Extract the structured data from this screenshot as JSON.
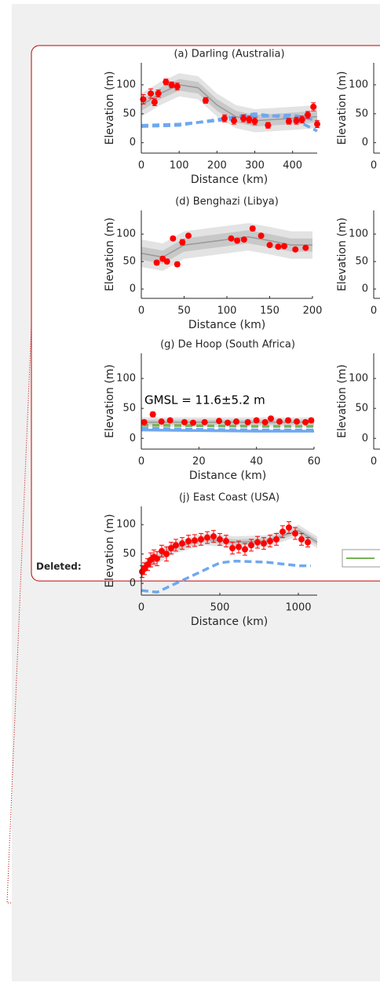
{
  "chart_data": [
    {
      "type": "scatter",
      "title": "(a) Darling (Australia)",
      "xlabel": "Distance (km)",
      "ylabel": "Elevation (m)",
      "xlim": [
        0,
        465
      ],
      "ylim": [
        -18,
        138
      ],
      "xticks": [
        0,
        100,
        200,
        300,
        400
      ],
      "yticks": [
        0,
        50,
        100
      ],
      "points": {
        "color": "#ff0000",
        "x": [
          5,
          25,
          35,
          45,
          65,
          80,
          95,
          170,
          220,
          245,
          270,
          285,
          300,
          335,
          390,
          410,
          425,
          440,
          455,
          465
        ],
        "y": [
          75,
          85,
          70,
          85,
          105,
          100,
          97,
          73,
          42,
          38,
          42,
          40,
          37,
          30,
          37,
          38,
          40,
          48,
          62,
          32
        ],
        "err": [
          8,
          8,
          6,
          6,
          5,
          5,
          6,
          5,
          6,
          6,
          6,
          6,
          6,
          5,
          5,
          6,
          6,
          6,
          7,
          6
        ]
      },
      "fit": {
        "color": "#999999",
        "x": [
          0,
          50,
          100,
          150,
          200,
          250,
          300,
          350,
          400,
          465
        ],
        "y": [
          65,
          85,
          100,
          95,
          65,
          45,
          38,
          40,
          42,
          45
        ],
        "band_inner": [
          10,
          10,
          10,
          10,
          10,
          10,
          10,
          10,
          10,
          10
        ],
        "band_outer": [
          20,
          20,
          20,
          20,
          20,
          20,
          20,
          20,
          20,
          20
        ]
      },
      "model_lines": [
        {
          "color": "#6fa8f0",
          "style": "dashed",
          "x": [
            0,
            100,
            200,
            300,
            400,
            465
          ],
          "y": [
            30,
            32,
            38,
            45,
            48,
            38
          ]
        },
        {
          "color": "#6fa8f0",
          "style": "dashed",
          "x": [
            0,
            100,
            200,
            300,
            400,
            465
          ],
          "y": [
            28,
            30,
            40,
            50,
            42,
            20
          ]
        }
      ]
    },
    {
      "type": "scatter",
      "title": "(d) Benghazi (Libya)",
      "xlabel": "Distance (km)",
      "ylabel": "Elevation (m)",
      "xlim": [
        0,
        200
      ],
      "ylim": [
        -17,
        143
      ],
      "xticks": [
        0,
        50,
        100,
        150,
        200
      ],
      "yticks": [
        0,
        50,
        100
      ],
      "points": {
        "color": "#ff0000",
        "x": [
          18,
          25,
          30,
          37,
          42,
          48,
          55,
          105,
          112,
          120,
          130,
          140,
          150,
          160,
          167,
          180,
          192
        ],
        "y": [
          48,
          55,
          50,
          92,
          45,
          85,
          97,
          92,
          88,
          90,
          110,
          97,
          80,
          77,
          78,
          72,
          75
        ],
        "err": [
          4,
          4,
          4,
          3,
          4,
          5,
          3,
          3,
          3,
          3,
          4,
          3,
          3,
          3,
          3,
          3,
          3
        ]
      },
      "fit": {
        "color": "#999999",
        "x": [
          0,
          25,
          50,
          75,
          100,
          125,
          150,
          175,
          200
        ],
        "y": [
          65,
          58,
          80,
          85,
          90,
          95,
          88,
          80,
          80
        ],
        "band_inner": [
          12,
          12,
          12,
          12,
          12,
          12,
          12,
          12,
          12
        ],
        "band_outer": [
          25,
          25,
          25,
          25,
          25,
          25,
          25,
          25,
          25
        ]
      },
      "model_lines": []
    },
    {
      "type": "scatter",
      "title": "(g) De Hoop (South Africa)",
      "xlabel": "Distance (km)",
      "ylabel": "Elevation (m)",
      "annotation": "GMSL = 11.6±5.2 m",
      "xlim": [
        0,
        60
      ],
      "ylim": [
        -18,
        142
      ],
      "xticks": [
        0,
        20,
        40,
        60
      ],
      "yticks": [
        0,
        50,
        100
      ],
      "points": {
        "color": "#ff0000",
        "x": [
          1,
          4,
          7,
          10,
          15,
          18,
          22,
          27,
          30,
          33,
          37,
          40,
          43,
          45,
          48,
          51,
          54,
          57,
          59
        ],
        "y": [
          27,
          40,
          28,
          30,
          27,
          26,
          27,
          29,
          26,
          28,
          27,
          30,
          27,
          33,
          28,
          30,
          28,
          27,
          30
        ],
        "err": [
          3,
          4,
          3,
          3,
          3,
          3,
          3,
          3,
          3,
          3,
          3,
          3,
          3,
          3,
          3,
          3,
          3,
          3,
          3
        ]
      },
      "fit": {
        "color": "#999999",
        "x": [
          0,
          20,
          40,
          60
        ],
        "y": [
          27,
          27,
          27,
          27
        ],
        "band_inner": [
          4,
          4,
          4,
          4
        ],
        "band_outer": [
          8,
          8,
          8,
          8
        ]
      },
      "model_lines": [
        {
          "color": "#77b255",
          "style": "dashed",
          "x": [
            0,
            20,
            40,
            60
          ],
          "y": [
            22,
            21,
            20,
            20
          ]
        },
        {
          "color": "#6fa8f0",
          "style": "dashed",
          "x": [
            0,
            20,
            40,
            60
          ],
          "y": [
            17,
            15,
            14,
            14
          ]
        },
        {
          "color": "#6fa8f0",
          "style": "solid",
          "x": [
            0,
            20,
            40,
            60
          ],
          "y": [
            14,
            13,
            12,
            12
          ]
        }
      ]
    },
    {
      "type": "scatter",
      "title": "(j) East Coast (USA)",
      "xlabel": "Distance (km)",
      "ylabel": "Elevation (m)",
      "xlim": [
        0,
        1120
      ],
      "ylim": [
        -20,
        131
      ],
      "xticks": [
        0,
        500,
        1000
      ],
      "yticks": [
        0,
        50,
        100
      ],
      "points": {
        "color": "#ff0000",
        "x": [
          5,
          20,
          40,
          60,
          80,
          100,
          130,
          160,
          190,
          220,
          260,
          300,
          340,
          380,
          420,
          460,
          500,
          540,
          580,
          620,
          660,
          700,
          740,
          780,
          820,
          860,
          900,
          940,
          980,
          1020,
          1060
        ],
        "y": [
          20,
          25,
          32,
          40,
          45,
          42,
          55,
          50,
          60,
          65,
          68,
          72,
          73,
          75,
          78,
          80,
          75,
          72,
          60,
          62,
          58,
          65,
          70,
          68,
          72,
          75,
          88,
          95,
          85,
          75,
          70
        ],
        "err": [
          10,
          10,
          10,
          12,
          12,
          12,
          10,
          12,
          10,
          10,
          10,
          10,
          10,
          10,
          10,
          10,
          10,
          10,
          10,
          10,
          10,
          10,
          10,
          10,
          10,
          10,
          10,
          10,
          10,
          10,
          8
        ]
      },
      "fit": {
        "color": "#999999",
        "x": [
          0,
          200,
          400,
          600,
          800,
          1000,
          1120
        ],
        "y": [
          25,
          60,
          75,
          70,
          72,
          90,
          70
        ],
        "band_inner": [
          5,
          5,
          5,
          5,
          5,
          5,
          5
        ],
        "band_outer": [
          10,
          10,
          10,
          10,
          10,
          10,
          10
        ]
      },
      "model_lines": [
        {
          "color": "#6fa8f0",
          "style": "dashed",
          "x": [
            0,
            100,
            300,
            500,
            600,
            800,
            1000,
            1080
          ],
          "y": [
            -12,
            -15,
            10,
            35,
            38,
            36,
            30,
            30
          ]
        }
      ]
    },
    {
      "type": "scatter",
      "ylabel": "Elevation (m)",
      "xlim": [
        0,
        465
      ],
      "ylim": [
        -18,
        138
      ],
      "xticks": [
        0
      ],
      "yticks": [
        0,
        50,
        100
      ]
    },
    {
      "type": "scatter",
      "ylabel": "Elevation (m)",
      "xlim": [
        0,
        200
      ],
      "ylim": [
        -17,
        143
      ],
      "xticks": [
        0
      ],
      "yticks": [
        0,
        50,
        100
      ]
    },
    {
      "type": "scatter",
      "ylabel": "Elevation (m)",
      "xlim": [
        0,
        60
      ],
      "ylim": [
        -18,
        142
      ],
      "xticks": [
        0
      ],
      "yticks": [
        0,
        50,
        100
      ]
    }
  ],
  "label": "Deleted:"
}
